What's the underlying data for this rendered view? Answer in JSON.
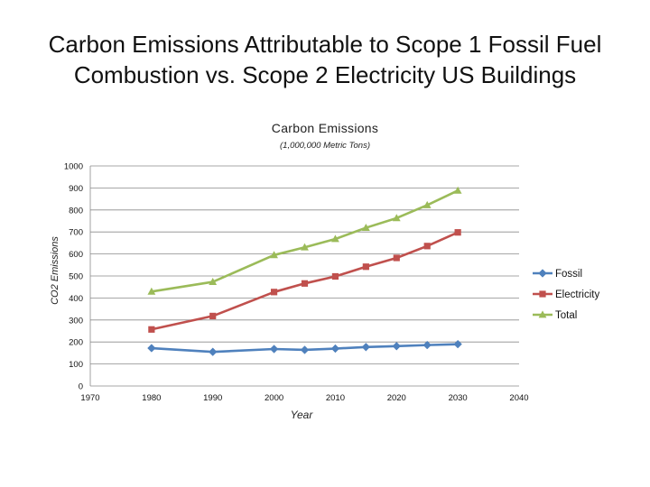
{
  "slide": {
    "title_line1": "Carbon Emissions Attributable to Scope 1 Fossil Fuel",
    "title_line2": "Combustion vs. Scope 2 Electricity US Buildings"
  },
  "chart_data": {
    "type": "line",
    "title": "Carbon Emissions",
    "subtitle": "(1,000,000 Metric Tons)",
    "xlabel": "Year",
    "ylabel": "CO2 Emissions",
    "xlim": [
      1970,
      2040
    ],
    "ylim": [
      0,
      1000
    ],
    "xticks": [
      1970,
      1980,
      1990,
      2000,
      2010,
      2020,
      2030,
      2040
    ],
    "yticks": [
      0,
      100,
      200,
      300,
      400,
      500,
      600,
      700,
      800,
      900,
      1000
    ],
    "grid": "horizontal",
    "legend_position": "right",
    "series": [
      {
        "name": "Fossil",
        "color": "#4f81bd",
        "marker": "diamond",
        "points": [
          [
            1980,
            172
          ],
          [
            1990,
            155
          ],
          [
            2000,
            168
          ],
          [
            2005,
            164
          ],
          [
            2010,
            170
          ],
          [
            2015,
            177
          ],
          [
            2020,
            181
          ],
          [
            2025,
            186
          ],
          [
            2030,
            190
          ]
        ]
      },
      {
        "name": "Electricity",
        "color": "#c0504d",
        "marker": "square",
        "points": [
          [
            1980,
            257
          ],
          [
            1990,
            318
          ],
          [
            2000,
            427
          ],
          [
            2005,
            466
          ],
          [
            2010,
            498
          ],
          [
            2015,
            542
          ],
          [
            2020,
            582
          ],
          [
            2025,
            636
          ],
          [
            2030,
            698
          ]
        ]
      },
      {
        "name": "Total",
        "color": "#9bbb59",
        "marker": "triangle",
        "points": [
          [
            1980,
            429
          ],
          [
            1990,
            473
          ],
          [
            2000,
            595
          ],
          [
            2005,
            630
          ],
          [
            2010,
            668
          ],
          [
            2015,
            719
          ],
          [
            2020,
            763
          ],
          [
            2025,
            822
          ],
          [
            2030,
            888
          ]
        ]
      }
    ]
  }
}
